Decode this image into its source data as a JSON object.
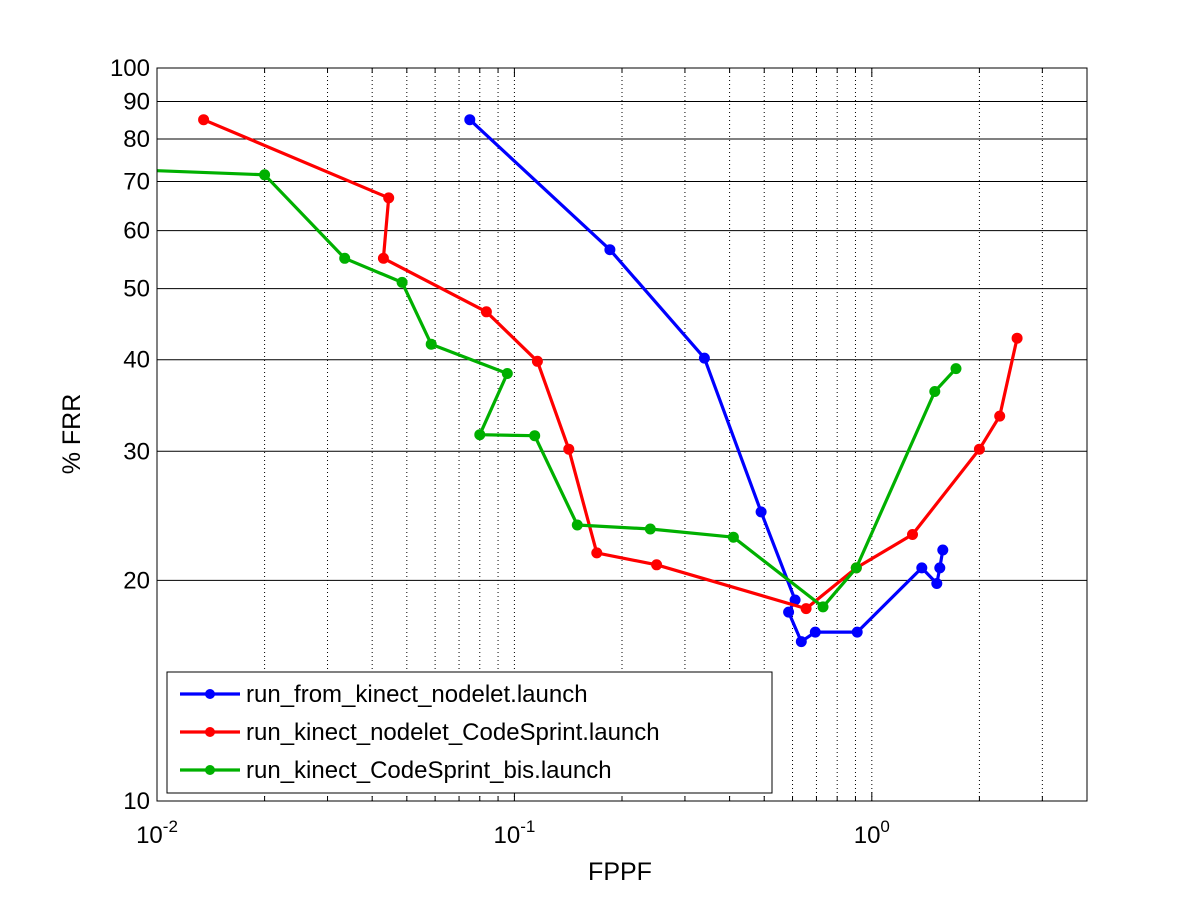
{
  "chart_data": {
    "type": "line",
    "title": "",
    "xlabel": "FPPF",
    "ylabel": "% FRR",
    "x_scale": "log",
    "y_scale": "log",
    "xlim": [
      0.01,
      4
    ],
    "ylim": [
      10,
      100
    ],
    "grid": true,
    "legend_position": "bottom-left",
    "x_ticks": [
      {
        "value": 0.01,
        "base": "10",
        "exp": "-2"
      },
      {
        "value": 0.1,
        "base": "10",
        "exp": "-1"
      },
      {
        "value": 1,
        "base": "10",
        "exp": "0"
      }
    ],
    "y_ticks": [
      {
        "value": 10,
        "label": "10"
      },
      {
        "value": 20,
        "label": "20"
      },
      {
        "value": 30,
        "label": "30"
      },
      {
        "value": 40,
        "label": "40"
      },
      {
        "value": 50,
        "label": "50"
      },
      {
        "value": 60,
        "label": "60"
      },
      {
        "value": 70,
        "label": "70"
      },
      {
        "value": 80,
        "label": "80"
      },
      {
        "value": 90,
        "label": "90"
      },
      {
        "value": 100,
        "label": "100"
      }
    ],
    "series": [
      {
        "name": "run_from_kinect_nodelet.launch",
        "color": "#0000ff",
        "points": [
          [
            0.075,
            85
          ],
          [
            0.185,
            56.5
          ],
          [
            0.34,
            40.2
          ],
          [
            0.49,
            24.8
          ],
          [
            0.61,
            18.8
          ],
          [
            0.585,
            18.1
          ],
          [
            0.635,
            16.5
          ],
          [
            0.695,
            17.0
          ],
          [
            0.91,
            17.0
          ],
          [
            1.38,
            20.8
          ],
          [
            1.52,
            19.8
          ],
          [
            1.55,
            20.8
          ],
          [
            1.58,
            22.0
          ]
        ]
      },
      {
        "name": "run_kinect_nodelet_CodeSprint.launch",
        "color": "#ff0000",
        "points": [
          [
            0.0135,
            85
          ],
          [
            0.0445,
            66.5
          ],
          [
            0.043,
            55.0
          ],
          [
            0.0835,
            46.5
          ],
          [
            0.116,
            39.8
          ],
          [
            0.142,
            30.2
          ],
          [
            0.17,
            21.8
          ],
          [
            0.25,
            21.0
          ],
          [
            0.655,
            18.3
          ],
          [
            0.905,
            20.8
          ],
          [
            1.3,
            23.1
          ],
          [
            2.0,
            30.2
          ],
          [
            2.28,
            33.5
          ],
          [
            2.55,
            42.8
          ]
        ]
      },
      {
        "name": "run_kinect_CodeSprint_bis.launch",
        "color": "#00b000",
        "points": [
          [
            0.0095,
            72.5
          ],
          [
            0.02,
            71.5
          ],
          [
            0.0335,
            55.0
          ],
          [
            0.0485,
            51.0
          ],
          [
            0.0585,
            42.0
          ],
          [
            0.0955,
            38.3
          ],
          [
            0.08,
            31.6
          ],
          [
            0.114,
            31.5
          ],
          [
            0.15,
            23.8
          ],
          [
            0.24,
            23.5
          ],
          [
            0.41,
            22.9
          ],
          [
            0.73,
            18.4
          ],
          [
            0.905,
            20.8
          ],
          [
            1.5,
            36.2
          ],
          [
            1.72,
            38.9
          ]
        ]
      }
    ]
  }
}
